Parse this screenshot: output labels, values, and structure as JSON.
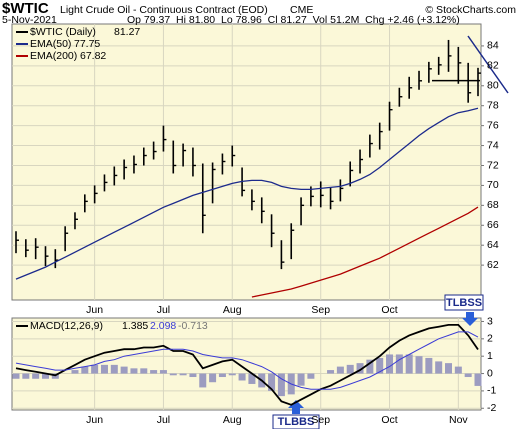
{
  "header": {
    "symbol": "$WTIC",
    "description": "Light Crude Oil - Continuous Contract (EOD)",
    "exchange": "CME",
    "source": "© StockCharts.com",
    "date": "5-Nov-2021",
    "quote": "Op 79.37  Hi 81.80  Lo 78.96  Cl 81.27  Vol 51.2M  Chg +2.46 (+3.12%)"
  },
  "chart_data": [
    {
      "type": "ohlc",
      "name": "$WTIC (Daily)",
      "color": "#000000",
      "categories": [
        null,
        null,
        null,
        null,
        null,
        null,
        null,
        null,
        "Jun",
        null,
        null,
        null,
        null,
        null,
        null,
        "Jul",
        null,
        null,
        null,
        null,
        null,
        null,
        "Aug",
        null,
        null,
        null,
        null,
        null,
        null,
        null,
        null,
        "Sep",
        null,
        null,
        null,
        null,
        null,
        null,
        "Oct",
        null,
        null,
        null,
        null,
        null,
        null,
        null,
        null,
        null
      ],
      "high": [
        65.4,
        64.6,
        64.7,
        63.9,
        63.6,
        65.9,
        67.3,
        69.1,
        70.0,
        71.1,
        71.9,
        72.6,
        73.0,
        73.8,
        74.4,
        76.0,
        74.5,
        74.2,
        73.8,
        72.2,
        72.3,
        73.2,
        74.0,
        71.8,
        69.6,
        68.8,
        67.1,
        64.5,
        66.2,
        68.8,
        69.9,
        70.4,
        69.8,
        70.6,
        72.4,
        73.6,
        75.1,
        76.3,
        78.4,
        79.8,
        80.9,
        81.5,
        82.4,
        82.9,
        84.6,
        83.9,
        82.3,
        81.8
      ],
      "low": [
        63.2,
        62.8,
        62.6,
        61.9,
        61.7,
        63.4,
        65.6,
        67.3,
        68.2,
        69.4,
        70.0,
        70.6,
        71.2,
        72.0,
        72.6,
        73.4,
        71.2,
        71.9,
        70.9,
        65.2,
        68.2,
        71.1,
        71.9,
        68.9,
        67.5,
        66.2,
        63.8,
        61.6,
        62.6,
        66.0,
        67.9,
        67.8,
        67.6,
        68.4,
        69.9,
        71.2,
        72.8,
        73.6,
        75.5,
        77.9,
        78.7,
        79.6,
        80.3,
        81.1,
        81.4,
        80.2,
        78.3,
        78.96
      ],
      "close": [
        64.5,
        63.5,
        63.8,
        62.9,
        62.5,
        65.2,
        66.6,
        68.4,
        69.2,
        70.3,
        71.0,
        71.8,
        72.1,
        73.0,
        73.4,
        74.6,
        72.0,
        73.5,
        72.0,
        67.0,
        71.6,
        72.4,
        73.0,
        69.5,
        68.4,
        67.4,
        65.2,
        62.3,
        65.5,
        68.0,
        68.9,
        69.0,
        68.4,
        69.7,
        71.5,
        72.6,
        74.2,
        75.4,
        77.6,
        78.9,
        79.8,
        80.5,
        81.7,
        82.1,
        83.0,
        82.3,
        79.3,
        81.27
      ],
      "series": [
        {
          "name": "EMA(50)",
          "color": "#1c2a8c",
          "values": [
            60.6,
            61.0,
            61.4,
            61.8,
            62.3,
            62.8,
            63.3,
            63.8,
            64.3,
            64.8,
            65.3,
            65.8,
            66.3,
            66.8,
            67.3,
            67.8,
            68.2,
            68.6,
            69.0,
            69.3,
            69.6,
            69.9,
            70.2,
            70.4,
            70.5,
            70.5,
            70.3,
            69.9,
            69.7,
            69.6,
            69.6,
            69.7,
            69.8,
            69.9,
            70.2,
            70.6,
            71.1,
            71.8,
            72.6,
            73.4,
            74.2,
            75.0,
            75.7,
            76.3,
            76.9,
            77.3,
            77.5,
            77.75
          ]
        },
        {
          "name": "EMA(200)",
          "color": "#b00000",
          "values": [
            null,
            null,
            null,
            null,
            null,
            null,
            null,
            null,
            null,
            null,
            null,
            null,
            null,
            null,
            null,
            null,
            null,
            null,
            null,
            null,
            null,
            null,
            null,
            null,
            58.8,
            59.0,
            59.2,
            59.4,
            59.6,
            59.9,
            60.2,
            60.5,
            60.8,
            61.1,
            61.5,
            61.9,
            62.3,
            62.7,
            63.2,
            63.7,
            64.2,
            64.7,
            65.2,
            65.7,
            66.2,
            66.7,
            67.2,
            67.82
          ]
        }
      ],
      "ylim": [
        58.5,
        86.2
      ],
      "yticks": [
        62,
        64,
        66,
        68,
        70,
        72,
        74,
        76,
        78,
        80,
        82,
        84
      ],
      "grid": true
    },
    {
      "type": "macd",
      "categories": [
        null,
        null,
        null,
        null,
        null,
        null,
        null,
        null,
        "Jun",
        null,
        null,
        null,
        null,
        null,
        null,
        "Jul",
        null,
        null,
        null,
        null,
        null,
        null,
        "Aug",
        null,
        null,
        null,
        null,
        null,
        null,
        null,
        null,
        "Sep",
        null,
        null,
        null,
        null,
        null,
        null,
        "Oct",
        null,
        null,
        null,
        null,
        null,
        null,
        "Nov",
        null,
        null
      ],
      "series": [
        {
          "name": "MACD(12,26,9)",
          "style": "line",
          "color": "#000000",
          "values": [
            0.3,
            0.2,
            0.1,
            0.0,
            -0.1,
            0.2,
            0.5,
            0.8,
            1.0,
            1.2,
            1.3,
            1.4,
            1.4,
            1.5,
            1.5,
            1.6,
            1.3,
            1.3,
            1.1,
            0.3,
            0.5,
            0.7,
            0.8,
            0.4,
            0.0,
            -0.4,
            -0.9,
            -1.6,
            -1.8,
            -1.5,
            -1.2,
            -0.9,
            -0.7,
            -0.4,
            -0.1,
            0.2,
            0.6,
            1.0,
            1.5,
            1.9,
            2.2,
            2.4,
            2.6,
            2.7,
            2.8,
            2.8,
            2.2,
            1.385
          ]
        },
        {
          "style": "signal",
          "color": "#3b3bd6",
          "values": [
            0.6,
            0.5,
            0.4,
            0.3,
            0.2,
            0.2,
            0.3,
            0.4,
            0.5,
            0.7,
            0.8,
            1.0,
            1.1,
            1.2,
            1.3,
            1.4,
            1.4,
            1.4,
            1.3,
            1.1,
            1.0,
            0.9,
            0.9,
            0.8,
            0.6,
            0.4,
            0.1,
            -0.3,
            -0.6,
            -0.8,
            -0.9,
            -0.9,
            -0.9,
            -0.8,
            -0.6,
            -0.4,
            -0.2,
            0.1,
            0.4,
            0.8,
            1.1,
            1.4,
            1.7,
            2.0,
            2.2,
            2.4,
            2.4,
            2.098
          ]
        },
        {
          "style": "histogram",
          "color": "#9c9cc0",
          "values": [
            -0.3,
            -0.3,
            -0.3,
            -0.3,
            -0.3,
            0.0,
            0.2,
            0.4,
            0.5,
            0.5,
            0.5,
            0.4,
            0.3,
            0.3,
            0.2,
            0.2,
            -0.1,
            -0.1,
            -0.2,
            -0.8,
            -0.5,
            -0.2,
            -0.1,
            -0.4,
            -0.6,
            -0.8,
            -1.0,
            -1.3,
            -1.2,
            -0.7,
            -0.3,
            0.0,
            0.2,
            0.4,
            0.5,
            0.6,
            0.8,
            0.9,
            1.1,
            1.1,
            1.1,
            1.0,
            0.9,
            0.7,
            0.6,
            0.4,
            -0.2,
            -0.713
          ]
        }
      ],
      "annotations": [
        "TLBSS",
        "TLBBS"
      ],
      "ylim": [
        -2.1,
        3.2
      ],
      "yticks": [
        -2,
        -1,
        0,
        1,
        2,
        3
      ],
      "grid": true
    }
  ]
}
